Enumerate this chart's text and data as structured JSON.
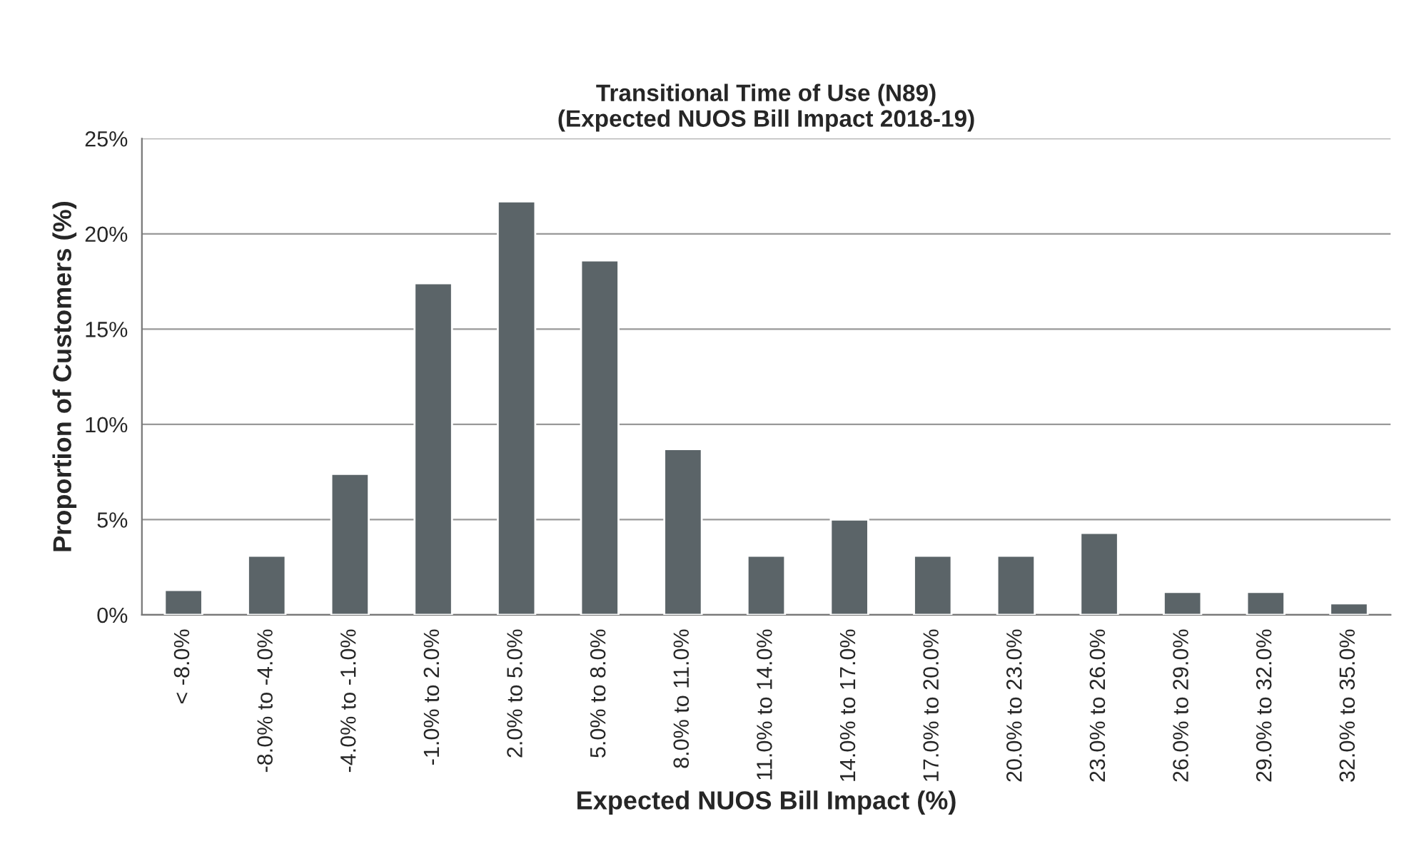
{
  "chart_data": {
    "type": "bar",
    "title": "Transitional Time of Use (N89)\n(Expected NUOS Bill Impact 2018-19)",
    "xlabel": "Expected NUOS Bill Impact (%)",
    "ylabel": "Proportion of Customers (%)",
    "categories": [
      "< -8.0%",
      "-8.0% to -4.0%",
      "-4.0% to -1.0%",
      "-1.0% to 2.0%",
      "2.0% to 5.0%",
      "5.0% to 8.0%",
      "8.0% to 11.0%",
      "11.0% to 14.0%",
      "14.0% to 17.0%",
      "17.0% to 20.0%",
      "20.0% to 23.0%",
      "23.0% to 26.0%",
      "26.0% to 29.0%",
      "29.0% to 32.0%",
      "32.0% to 35.0%"
    ],
    "values": [
      1.3,
      3.1,
      7.4,
      17.4,
      21.7,
      18.6,
      8.7,
      3.1,
      5.0,
      3.1,
      3.1,
      4.3,
      1.2,
      1.2,
      0.6
    ],
    "color": "#5b6468",
    "ylim": [
      0,
      25
    ],
    "yticks": [
      {
        "value": 0,
        "label": "0%"
      },
      {
        "value": 5,
        "label": "5%"
      },
      {
        "value": 10,
        "label": "10%"
      },
      {
        "value": 15,
        "label": "15%"
      },
      {
        "value": 20,
        "label": "20%"
      },
      {
        "value": 25,
        "label": "25%"
      }
    ],
    "grid": "y",
    "legend": false
  }
}
